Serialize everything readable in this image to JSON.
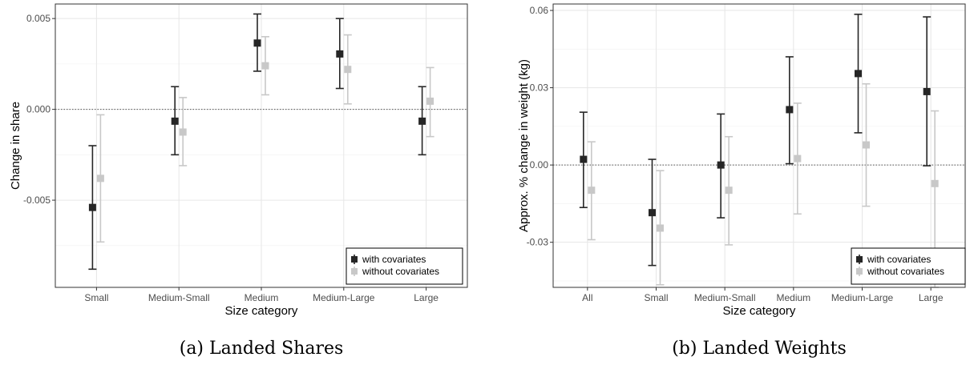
{
  "chart_data": [
    {
      "type": "scatter",
      "caption": "(a) Landed Shares",
      "xlabel": "Size category",
      "ylabel": "Change in share",
      "categories": [
        "Small",
        "Medium-Small",
        "Medium",
        "Medium-Large",
        "Large"
      ],
      "ylim": [
        -0.0098,
        0.0058
      ],
      "yticks": [
        -0.005,
        0.0,
        0.005
      ],
      "ytick_labels": [
        "-0.005",
        "0.000",
        "0.005"
      ],
      "reference_line": 0,
      "grid": true,
      "legend_position": "bottom-right",
      "series": [
        {
          "name": "with covariates",
          "color": "#262626",
          "estimates": [
            -0.0054,
            -0.00065,
            0.00365,
            0.00305,
            -0.00065
          ],
          "lower": [
            -0.0088,
            -0.0025,
            0.0021,
            0.00115,
            -0.0025
          ],
          "upper": [
            -0.002,
            0.00125,
            0.00525,
            0.005,
            0.00125
          ]
        },
        {
          "name": "without covariates",
          "color": "#c8c8c8",
          "estimates": [
            -0.0038,
            -0.00125,
            0.0024,
            0.0022,
            0.00045
          ],
          "lower": [
            -0.0073,
            -0.0031,
            0.0008,
            0.0003,
            -0.0015
          ],
          "upper": [
            -0.0003,
            0.00065,
            0.004,
            0.0041,
            0.0023
          ]
        }
      ]
    },
    {
      "type": "scatter",
      "caption": "(b) Landed Weights",
      "xlabel": "Size category",
      "ylabel": "Approx. % change in weight (kg)",
      "categories": [
        "All",
        "Small",
        "Medium-Small",
        "Medium",
        "Medium-Large",
        "Large"
      ],
      "ylim": [
        -0.0475,
        0.0625
      ],
      "yticks": [
        -0.03,
        0.0,
        0.03,
        0.06
      ],
      "ytick_labels": [
        "-0.03",
        "0.00",
        "0.03",
        "0.06"
      ],
      "reference_line": 0,
      "grid": true,
      "legend_position": "bottom-right",
      "series": [
        {
          "name": "with covariates",
          "color": "#262626",
          "estimates": [
            0.0022,
            -0.0185,
            0.0,
            0.0215,
            0.0355,
            0.0285
          ],
          "lower": [
            -0.0165,
            -0.039,
            -0.0205,
            0.0005,
            0.0125,
            -0.0003
          ],
          "upper": [
            0.0205,
            0.0022,
            0.0198,
            0.042,
            0.0585,
            0.0575
          ]
        },
        {
          "name": "without covariates",
          "color": "#c8c8c8",
          "estimates": [
            -0.0098,
            -0.0245,
            -0.0098,
            0.0025,
            0.0078,
            -0.0072
          ],
          "lower": [
            -0.029,
            -0.0465,
            -0.031,
            -0.019,
            -0.016,
            -0.0475
          ],
          "upper": [
            0.009,
            -0.0022,
            0.011,
            0.024,
            0.0315,
            0.021
          ]
        }
      ]
    }
  ]
}
